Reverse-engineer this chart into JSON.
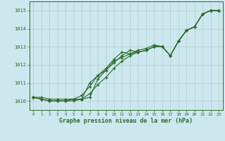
{
  "xlabel": "Graphe pression niveau de la mer (hPa)",
  "x_ticks": [
    0,
    1,
    2,
    3,
    4,
    5,
    6,
    7,
    8,
    9,
    10,
    11,
    12,
    13,
    14,
    15,
    16,
    17,
    18,
    19,
    20,
    21,
    22,
    23
  ],
  "ylim": [
    1009.5,
    1015.5
  ],
  "xlim": [
    -0.5,
    23.5
  ],
  "yticks": [
    1010,
    1011,
    1012,
    1013,
    1014,
    1015
  ],
  "bg_color": "#cce8ee",
  "line_color": "#2d6a2d",
  "grid_color": "#b0cccc",
  "series1": [
    1010.2,
    1010.2,
    1010.1,
    1010.1,
    1010.1,
    1010.1,
    1010.1,
    1010.2,
    1011.2,
    1011.7,
    1012.1,
    1012.5,
    1012.8,
    1012.7,
    1012.8,
    1013.0,
    1013.0,
    1012.5,
    1013.3,
    1013.9,
    1014.1,
    1014.8,
    1015.0,
    1015.0
  ],
  "series2": [
    1010.2,
    1010.1,
    1010.0,
    1010.0,
    1010.0,
    1010.0,
    1010.1,
    1010.4,
    1010.9,
    1011.3,
    1011.8,
    1012.2,
    1012.5,
    1012.7,
    1012.8,
    1013.0,
    1013.0,
    1012.5,
    1013.3,
    1013.9,
    1014.1,
    1014.8,
    1015.0,
    1015.0
  ],
  "series3": [
    1010.2,
    1010.1,
    1010.0,
    1010.0,
    1010.0,
    1010.1,
    1010.3,
    1010.8,
    1011.4,
    1011.7,
    1012.2,
    1012.4,
    1012.6,
    1012.7,
    1012.8,
    1013.0,
    1013.0,
    1012.5,
    1013.3,
    1013.9,
    1014.1,
    1014.8,
    1015.0,
    1015.0
  ],
  "series4": [
    1010.2,
    1010.1,
    1010.0,
    1010.0,
    1010.0,
    1010.1,
    1010.1,
    1011.0,
    1011.4,
    1011.8,
    1012.3,
    1012.7,
    1012.6,
    1012.8,
    1012.9,
    1013.1,
    1013.0,
    1012.5,
    1013.3,
    1013.9,
    1014.1,
    1014.8,
    1015.0,
    1015.0
  ]
}
